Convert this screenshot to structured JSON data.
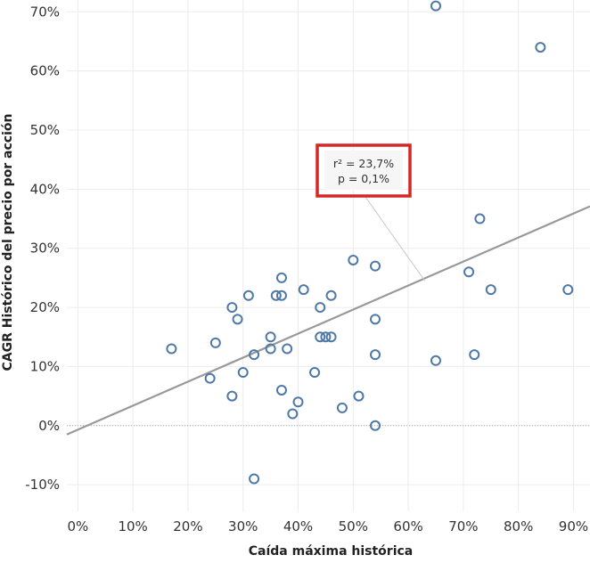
{
  "chart_data": {
    "type": "scatter",
    "xlabel": "Caída máxima histórica",
    "ylabel": "CAGR Histórico del precio por acción",
    "xlim": [
      -2,
      93
    ],
    "ylim": [
      -14.5,
      72
    ],
    "x_ticks": [
      0,
      10,
      20,
      30,
      40,
      50,
      60,
      70,
      80,
      90
    ],
    "y_ticks": [
      -10,
      0,
      10,
      20,
      30,
      40,
      50,
      60,
      70
    ],
    "x_tick_labels": [
      "0%",
      "10%",
      "20%",
      "30%",
      "40%",
      "50%",
      "60%",
      "70%",
      "80%",
      "90%"
    ],
    "y_tick_labels": [
      "-10%",
      "0%",
      "10%",
      "20%",
      "30%",
      "40%",
      "50%",
      "60%",
      "70%"
    ],
    "grid": true,
    "zero_line": true,
    "points": [
      {
        "x": 17,
        "y": 13
      },
      {
        "x": 24,
        "y": 8
      },
      {
        "x": 25,
        "y": 14
      },
      {
        "x": 28,
        "y": 20
      },
      {
        "x": 28,
        "y": 5
      },
      {
        "x": 29,
        "y": 18
      },
      {
        "x": 30,
        "y": 9
      },
      {
        "x": 31,
        "y": 22
      },
      {
        "x": 32,
        "y": 12
      },
      {
        "x": 32,
        "y": -9
      },
      {
        "x": 35,
        "y": 15
      },
      {
        "x": 35,
        "y": 13
      },
      {
        "x": 36,
        "y": 22
      },
      {
        "x": 37,
        "y": 25
      },
      {
        "x": 37,
        "y": 22
      },
      {
        "x": 37,
        "y": 6
      },
      {
        "x": 38,
        "y": 13
      },
      {
        "x": 39,
        "y": 2
      },
      {
        "x": 40,
        "y": 4
      },
      {
        "x": 41,
        "y": 23
      },
      {
        "x": 43,
        "y": 9
      },
      {
        "x": 44,
        "y": 20
      },
      {
        "x": 44,
        "y": 15
      },
      {
        "x": 45,
        "y": 15
      },
      {
        "x": 46,
        "y": 15
      },
      {
        "x": 46,
        "y": 22
      },
      {
        "x": 48,
        "y": 3
      },
      {
        "x": 50,
        "y": 28
      },
      {
        "x": 51,
        "y": 5
      },
      {
        "x": 54,
        "y": 27
      },
      {
        "x": 54,
        "y": 18
      },
      {
        "x": 54,
        "y": 12
      },
      {
        "x": 54,
        "y": 0
      },
      {
        "x": 65,
        "y": 71
      },
      {
        "x": 65,
        "y": 11
      },
      {
        "x": 71,
        "y": 26
      },
      {
        "x": 72,
        "y": 12
      },
      {
        "x": 73,
        "y": 35
      },
      {
        "x": 75,
        "y": 23
      },
      {
        "x": 84,
        "y": 64
      },
      {
        "x": 89,
        "y": 23
      }
    ],
    "trend_line": {
      "x": [
        -2,
        93
      ],
      "y": [
        -1.5,
        37.1
      ]
    },
    "annotation": {
      "r2": "r² = 23,7%",
      "p": "p = 0,1%",
      "anchor": {
        "x": 63,
        "y": 24.5
      }
    },
    "colors": {
      "points": "#4e79a7",
      "trend": "#999999",
      "highlight_box": "#d62728"
    }
  }
}
